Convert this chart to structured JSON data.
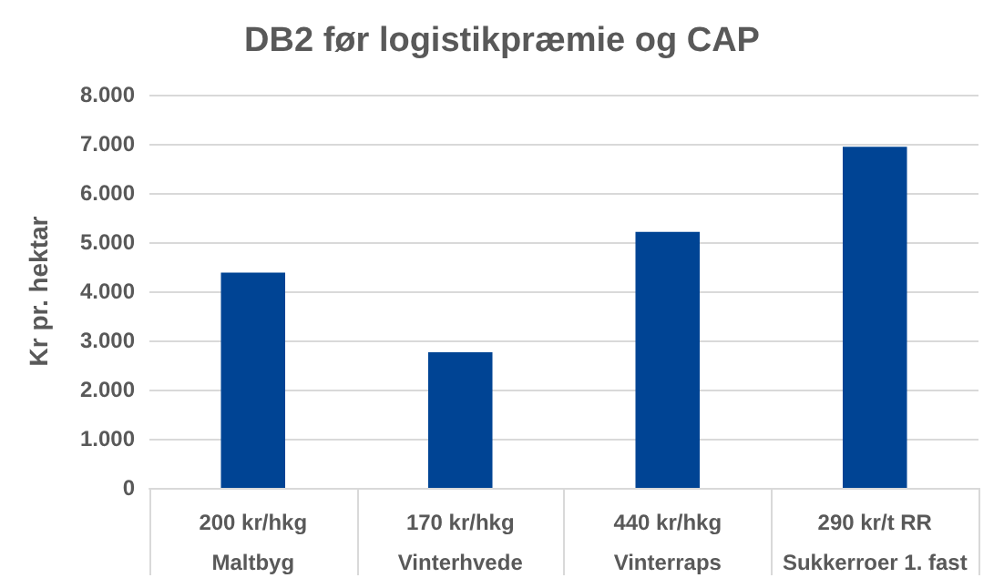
{
  "chart_data": {
    "type": "bar",
    "title": "DB2 før logistikpræmie og CAP",
    "ylabel": "Kr pr. hektar",
    "categories": [
      "200 kr/hkg\nMaltbyg",
      "170 kr/hkg\nVinterhvede",
      "440 kr/hkg\nVinterraps",
      "290 kr/t RR\nSukkerroer 1. fast"
    ],
    "values": [
      4380,
      2760,
      5210,
      6940
    ],
    "color": "#004494",
    "ylim": [
      0,
      8000
    ],
    "yticks": [
      {
        "value": 0,
        "label": "0"
      },
      {
        "value": 1000,
        "label": "1.000"
      },
      {
        "value": 2000,
        "label": "2.000"
      },
      {
        "value": 3000,
        "label": "3.000"
      },
      {
        "value": 4000,
        "label": "4.000"
      },
      {
        "value": 5000,
        "label": "5.000"
      },
      {
        "value": 6000,
        "label": "6.000"
      },
      {
        "value": 7000,
        "label": "7.000"
      },
      {
        "value": 8000,
        "label": "8.000"
      }
    ],
    "grid": "y"
  }
}
